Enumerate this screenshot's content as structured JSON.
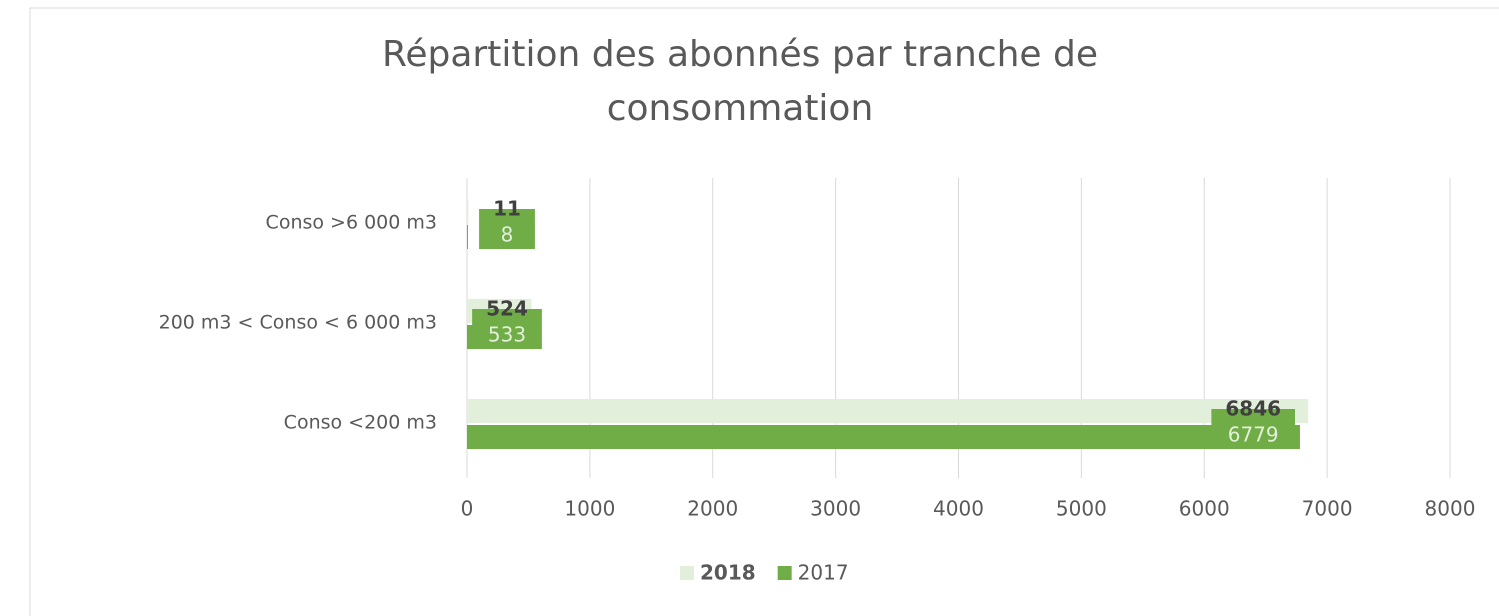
{
  "chart_data": {
    "type": "hbar",
    "title": "Répartition des abonnés par tranche de consommation",
    "categories": [
      "Conso >6 000 m3",
      "200 m3 < Conso < 6 000 m3",
      "Conso <200 m3"
    ],
    "series": [
      {
        "name": "2018",
        "color": "#e2efda",
        "values": [
          11,
          524,
          6846
        ]
      },
      {
        "name": "2017",
        "color": "#70ad47",
        "values": [
          8,
          533,
          6779
        ]
      }
    ],
    "xlim": [
      0,
      8000
    ],
    "xticks": [
      0,
      1000,
      2000,
      3000,
      4000,
      5000,
      6000,
      7000,
      8000
    ],
    "grid": true,
    "legend": "bottom"
  }
}
